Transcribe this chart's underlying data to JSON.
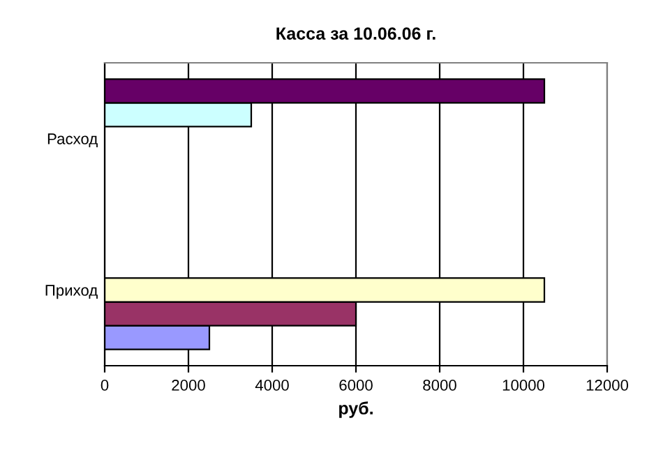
{
  "chart_data": {
    "type": "bar",
    "orientation": "horizontal",
    "title": "Касса за 10.06.06 г.",
    "xlabel": "руб.",
    "categories": [
      "Расход",
      "Приход"
    ],
    "series": [
      {
        "color": "#9999ff",
        "values": [
          null,
          2500
        ]
      },
      {
        "color": "#993366",
        "values": [
          null,
          6000
        ]
      },
      {
        "color": "#ffffcc",
        "values": [
          null,
          10500
        ]
      },
      {
        "color": "#ccffff",
        "values": [
          3500,
          null
        ]
      },
      {
        "color": "#660066",
        "values": [
          10500,
          null
        ]
      }
    ],
    "xlim": [
      0,
      12000
    ],
    "xticks": [
      0,
      2000,
      4000,
      6000,
      8000,
      10000,
      12000
    ],
    "grid": "x",
    "legend": false
  }
}
